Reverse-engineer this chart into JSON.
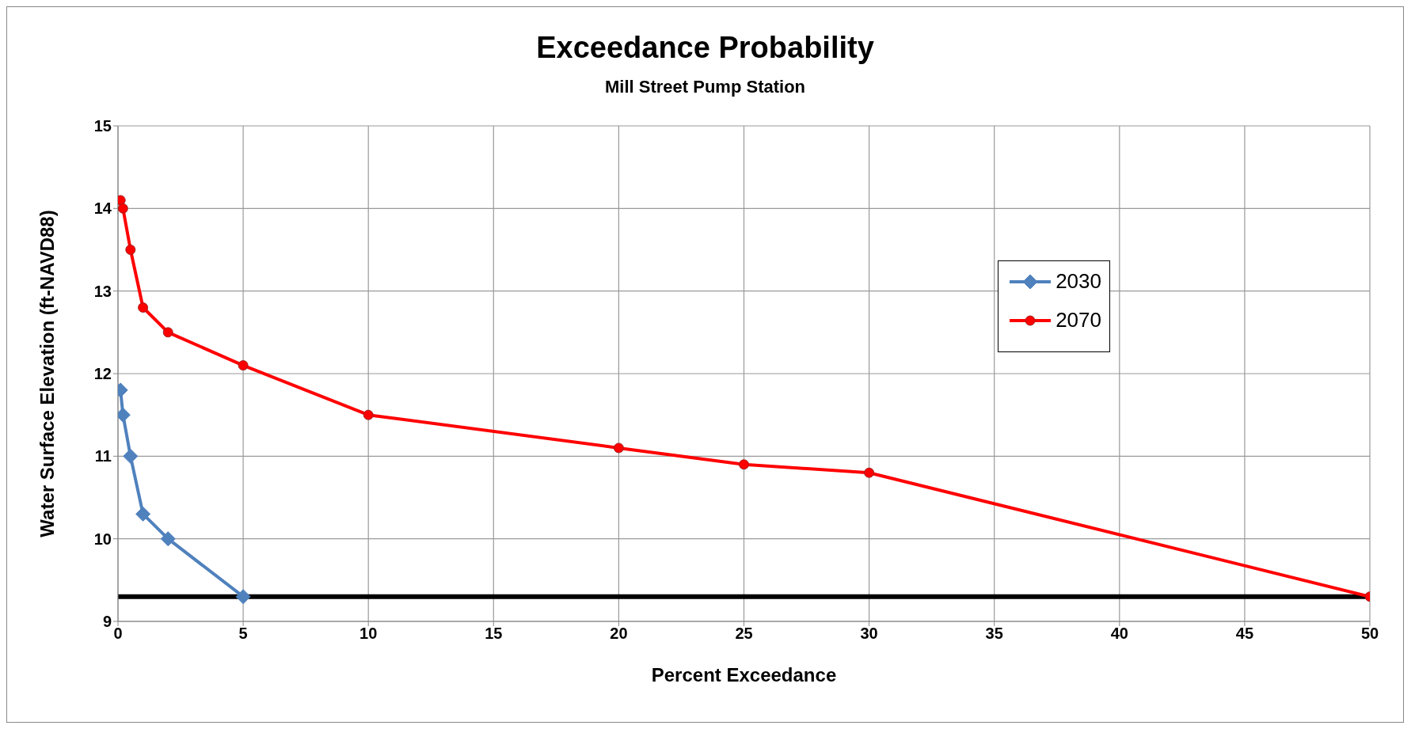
{
  "chart_data": {
    "type": "line",
    "title": "Exceedance Probability",
    "subtitle": "Mill Street Pump Station",
    "xlabel": "Percent Exceedance",
    "ylabel": "Water Surface Elevation (ft-NAVD88)",
    "series": [
      {
        "name": "2030",
        "color": "#4f81bd",
        "marker": "diamond",
        "x": [
          0.1,
          0.2,
          0.5,
          1,
          2,
          5
        ],
        "values": [
          11.8,
          11.5,
          11.0,
          10.3,
          10.0,
          9.3
        ]
      },
      {
        "name": "2070",
        "color": "#ff0000",
        "marker": "circle",
        "x": [
          0.1,
          0.2,
          0.5,
          1,
          2,
          5,
          10,
          20,
          25,
          30,
          50
        ],
        "values": [
          14.1,
          14.0,
          13.5,
          12.8,
          12.5,
          12.1,
          11.5,
          11.1,
          10.9,
          10.8,
          9.3
        ]
      }
    ],
    "ref_lines": [
      {
        "axis": "y",
        "value": 9.3,
        "color": "#000000"
      }
    ],
    "xlim": [
      0,
      50
    ],
    "xticks": [
      0,
      5,
      10,
      15,
      20,
      25,
      30,
      35,
      40,
      45,
      50
    ],
    "ylim": [
      9,
      15
    ],
    "yticks": [
      9,
      10,
      11,
      12,
      13,
      14,
      15
    ],
    "grid": true,
    "legend": "top right"
  }
}
